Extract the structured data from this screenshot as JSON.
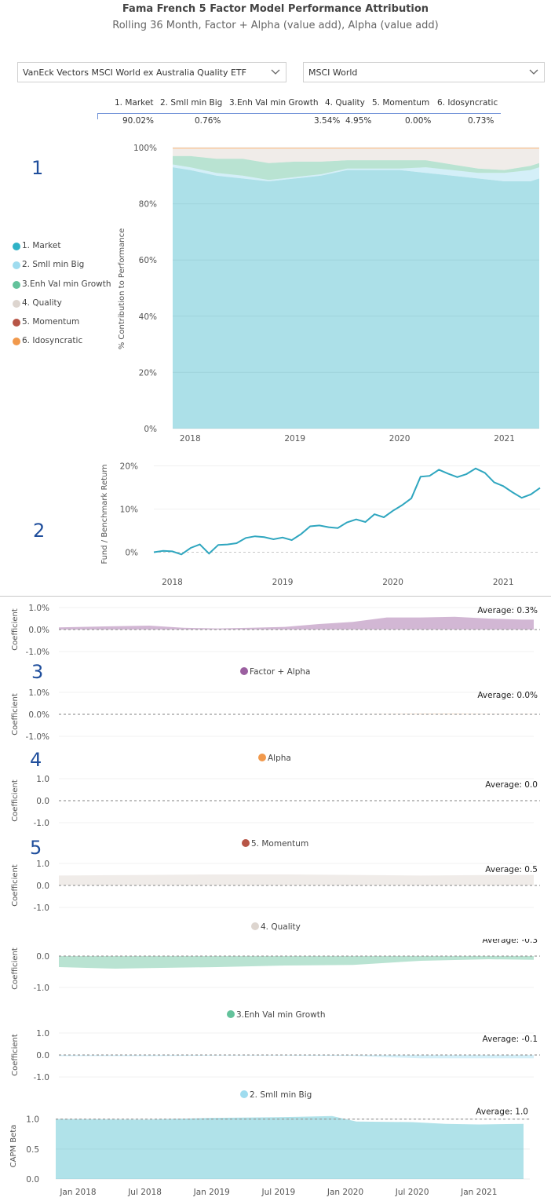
{
  "header": {
    "title": "Fama French 5 Factor Model Performance Attribution",
    "subtitle": "Rolling 36 Month, Factor + Alpha (value add), Alpha (value add)"
  },
  "filters": {
    "fund": "VanEck Vectors MSCI World ex Australia Quality ETF",
    "benchmark": "MSCI World"
  },
  "attribution_table": {
    "headers": [
      "1. Market",
      "2. Smll min Big",
      "3.Enh Val min Growth",
      "4. Quality",
      "5. Momentum",
      "6. Idosyncratic"
    ],
    "values": [
      "90.02%",
      "0.76%",
      "3.54%",
      "4.95%",
      "0.00%",
      "0.73%"
    ]
  },
  "section_numbers": [
    "1",
    "2",
    "3",
    "4",
    "5"
  ],
  "colors": {
    "market": "#2fb2c6",
    "smll_min_big": "#9fdcef",
    "enh_val": "#63c29b",
    "quality": "#ddd5cf",
    "momentum": "#b75546",
    "idosyncratic": "#f1994c",
    "factor_alpha": "#9b5fa0",
    "alpha": "#f1994c",
    "line": "#2fa6bf"
  },
  "chart_data": [
    {
      "type": "area",
      "ylabel": "% Contribution to Performance",
      "ylim": [
        0,
        100
      ],
      "yticks": [
        "0%",
        "20%",
        "40%",
        "60%",
        "80%",
        "100%"
      ],
      "xticks": [
        "2018",
        "2019",
        "2020",
        "2021"
      ],
      "x": [
        2017.833,
        2018.0,
        2018.25,
        2018.5,
        2018.75,
        2019.0,
        2019.25,
        2019.5,
        2019.75,
        2020.0,
        2020.25,
        2020.5,
        2020.75,
        2021.0,
        2021.25,
        2021.333
      ],
      "legend_position": "left",
      "series": [
        {
          "name": "1. Market",
          "values": [
            93,
            92,
            90,
            89,
            88,
            89,
            90,
            92,
            92,
            92,
            91,
            90,
            89,
            88,
            88,
            89
          ]
        },
        {
          "name": "2. Smll min Big",
          "values": [
            1,
            1,
            1,
            1,
            0.5,
            0.5,
            0.5,
            0.5,
            0.5,
            0.5,
            2,
            2,
            2,
            3,
            4,
            4
          ]
        },
        {
          "name": "3.Enh Val min Growth",
          "values": [
            3,
            4,
            5,
            6,
            6,
            5.5,
            4.5,
            3,
            3,
            3,
            2.5,
            2,
            1.5,
            1,
            1.5,
            1.5
          ]
        },
        {
          "name": "4. Quality",
          "values": [
            2.5,
            2.5,
            3.5,
            3.5,
            5,
            4.5,
            4.5,
            4,
            4,
            4,
            4,
            5.5,
            7,
            7.5,
            6,
            5
          ]
        },
        {
          "name": "5. Momentum",
          "values": [
            0,
            0,
            0,
            0,
            0,
            0,
            0,
            0,
            0,
            0,
            0,
            0,
            0,
            0,
            0,
            0
          ]
        },
        {
          "name": "6. Idosyncratic",
          "values": [
            0.5,
            0.5,
            0.5,
            0.5,
            0.5,
            0.5,
            0.5,
            0.5,
            0.5,
            0.5,
            0.5,
            0.5,
            0.5,
            0.5,
            0.5,
            0.5
          ]
        }
      ]
    },
    {
      "type": "line",
      "ylabel": "Fund / Benchmark Return",
      "ylim": [
        -3,
        21
      ],
      "yticks": [
        "0%",
        "10%",
        "20%"
      ],
      "xticks": [
        "2018",
        "2019",
        "2020",
        "2021"
      ],
      "x": [
        2017.833,
        2017.917,
        2018.0,
        2018.083,
        2018.167,
        2018.25,
        2018.333,
        2018.417,
        2018.5,
        2018.583,
        2018.667,
        2018.75,
        2018.833,
        2018.917,
        2019.0,
        2019.083,
        2019.167,
        2019.25,
        2019.333,
        2019.417,
        2019.5,
        2019.583,
        2019.667,
        2019.75,
        2019.833,
        2019.917,
        2020.0,
        2020.083,
        2020.167,
        2020.25,
        2020.333,
        2020.417,
        2020.5,
        2020.583,
        2020.667,
        2020.75,
        2020.833,
        2020.917,
        2021.0,
        2021.083,
        2021.167,
        2021.25,
        2021.333
      ],
      "values": [
        0,
        0.3,
        0.2,
        -0.5,
        1.0,
        1.8,
        -0.3,
        1.7,
        1.8,
        2.1,
        3.3,
        3.7,
        3.5,
        3.0,
        3.4,
        2.8,
        4.2,
        6.0,
        6.2,
        5.8,
        5.6,
        6.9,
        7.6,
        7.0,
        8.8,
        8.1,
        9.6,
        10.9,
        12.5,
        17.5,
        17.7,
        19.1,
        18.2,
        17.4,
        18.1,
        19.4,
        18.4,
        16.2,
        15.3,
        13.9,
        12.6,
        13.4,
        14.9
      ],
      "series_name": "Fund / Benchmark Return"
    },
    {
      "type": "area",
      "legend": "Factor + Alpha",
      "ylabel": "Coefficient",
      "yticks": [
        "1.0%",
        "0.0%",
        "-1.0%"
      ],
      "ylim": [
        -1,
        1
      ],
      "average_label": "Average: 0.3%",
      "x": [
        2017.833,
        2018.0,
        2018.25,
        2018.5,
        2018.75,
        2019.0,
        2019.25,
        2019.5,
        2019.75,
        2020.0,
        2020.25,
        2020.5,
        2020.75,
        2021.0,
        2021.25,
        2021.333
      ],
      "values": [
        0.1,
        0.12,
        0.15,
        0.18,
        0.08,
        0.05,
        0.08,
        0.12,
        0.25,
        0.35,
        0.55,
        0.55,
        0.58,
        0.5,
        0.45,
        0.45
      ]
    },
    {
      "type": "area",
      "legend": "Alpha",
      "ylabel": "Coefficient",
      "yticks": [
        "1.0%",
        "0.0%",
        "-1.0%"
      ],
      "ylim": [
        -1,
        1
      ],
      "average_label": "Average: 0.0%",
      "x": [
        2017.833,
        2018.5,
        2019.0,
        2019.5,
        2020.0,
        2020.5,
        2020.75,
        2021.0,
        2021.333
      ],
      "values": [
        0,
        0,
        0,
        0,
        0,
        0.02,
        0.02,
        0.01,
        0.01
      ]
    },
    {
      "type": "area",
      "legend": "5. Momentum",
      "ylabel": "Coefficient",
      "yticks": [
        "1.0",
        "0.0",
        "-1.0"
      ],
      "ylim": [
        -1,
        1
      ],
      "average_label": "Average: 0.0",
      "x": [
        2017.833,
        2021.333
      ],
      "values": [
        0,
        0
      ]
    },
    {
      "type": "area",
      "legend": "4. Quality",
      "ylabel": "Coefficient",
      "yticks": [
        "1.0",
        "0.0",
        "-1.0"
      ],
      "ylim": [
        -1,
        1
      ],
      "average_label": "Average: 0.5",
      "x": [
        2017.833,
        2018.5,
        2019.0,
        2019.5,
        2020.0,
        2020.5,
        2021.0,
        2021.333
      ],
      "values": [
        0.45,
        0.48,
        0.5,
        0.5,
        0.48,
        0.45,
        0.47,
        0.48
      ]
    },
    {
      "type": "area",
      "legend": "3.Enh Val min Growth",
      "ylabel": "Coefficient",
      "yticks": [
        "0.0",
        "-1.0"
      ],
      "ylim": [
        -1.1,
        0.3
      ],
      "average_label": "Average: -0.3",
      "x": [
        2017.833,
        2018.25,
        2018.5,
        2019.0,
        2019.5,
        2020.0,
        2020.5,
        2021.0,
        2021.333
      ],
      "values": [
        -0.35,
        -0.4,
        -0.38,
        -0.35,
        -0.3,
        -0.28,
        -0.15,
        -0.1,
        -0.12
      ]
    },
    {
      "type": "area",
      "legend": "2. Smll min Big",
      "ylabel": "Coefficient",
      "yticks": [
        "1.0",
        "0.0",
        "-1.0"
      ],
      "ylim": [
        -1,
        1
      ],
      "average_label": "Average: -0.1",
      "x": [
        2017.833,
        2018.5,
        2019.0,
        2019.5,
        2020.0,
        2020.25,
        2020.5,
        2021.0,
        2021.333
      ],
      "values": [
        -0.05,
        -0.05,
        -0.03,
        -0.03,
        -0.04,
        -0.1,
        -0.15,
        -0.15,
        -0.15
      ]
    },
    {
      "type": "area",
      "ylabel": "CAPM Beta",
      "yticks": [
        "0.0",
        "0.5",
        "1.0"
      ],
      "ylim": [
        0,
        1.1
      ],
      "average_label": "Average: 1.0",
      "xticks": [
        "Jan 2018",
        "Jul 2018",
        "Jan 2019",
        "Jul 2019",
        "Jan 2020",
        "Jul 2020",
        "Jan 2021"
      ],
      "x": [
        2017.833,
        2018.5,
        2019.0,
        2019.5,
        2019.9,
        2020.0,
        2020.083,
        2020.5,
        2020.75,
        2021.0,
        2021.333
      ],
      "values": [
        1.0,
        0.99,
        1.02,
        1.03,
        1.05,
        1.0,
        0.96,
        0.95,
        0.92,
        0.91,
        0.92
      ]
    }
  ]
}
